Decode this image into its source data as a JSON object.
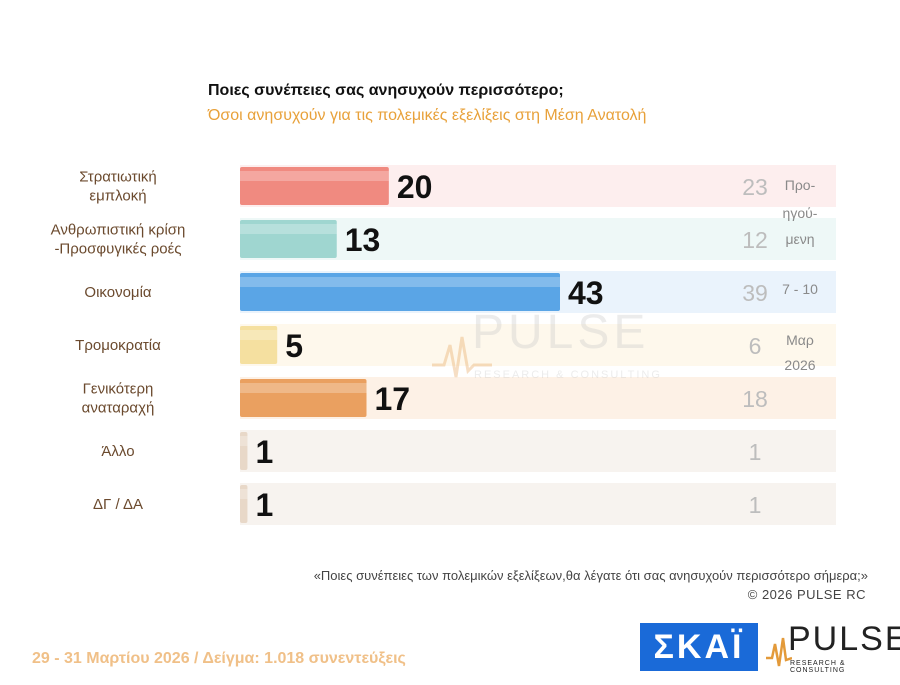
{
  "title": "Ποιες συνέπειες σας ανησυχούν περισσότερο;",
  "subtitle": "Όσοι ανησυχούν για τις πολεμικές εξελίξεις στη Μέση Ανατολή",
  "chart_data": {
    "type": "bar",
    "orientation": "horizontal",
    "categories": [
      [
        "Στρατιωτική",
        "εμπλοκή"
      ],
      [
        "Ανθρωπιστική κρίση",
        "-Προσφυγικές ροές"
      ],
      [
        "Οικονομία"
      ],
      [
        "Τρομοκρατία"
      ],
      [
        "Γενικότερη",
        "αναταραχή"
      ],
      [
        "Άλλο"
      ],
      [
        "ΔΓ / ΔΑ"
      ]
    ],
    "series": [
      {
        "values": [
          20,
          13,
          43,
          5,
          17,
          1,
          1
        ]
      },
      {
        "values": [
          23,
          12,
          39,
          6,
          18,
          1,
          1
        ]
      }
    ],
    "bar_colors": [
      "#f08a80",
      "#9fd6d0",
      "#5aa5e6",
      "#f5e0a0",
      "#eaa060",
      "#e8d8c8",
      "#e8d8c8"
    ],
    "row_tints": [
      "#fdeeee",
      "#eef8f7",
      "#eaf3fc",
      "#fef8ec",
      "#fdf1e6",
      "#f7f3ef",
      "#f7f3ef"
    ],
    "previous_label": [
      "Προ-",
      "ηγού-",
      "μενη",
      "7 - 10",
      "Μαρ",
      "2026"
    ],
    "xlim": [
      0,
      55
    ]
  },
  "question": "«Ποιες συνέπειες των πολεμικών εξελίξεων,θα λέγατε ότι σας ανησυχούν περισσότερο σήμερα;»",
  "copyright": "©  2026  PULSE RC",
  "footer": "29 - 31  Μαρτίου 2026  /  Δείγμα:  1.018 συνεντεύξεις",
  "logos": {
    "skai": "ΣΚΑΪ",
    "pulse": "PULSE",
    "pulse_tagline": "RESEARCH & CONSULTING"
  },
  "colors": {
    "subtitle": "#e8a13a",
    "footer": "#f0c088",
    "skai_blue": "#1a6ad8"
  }
}
